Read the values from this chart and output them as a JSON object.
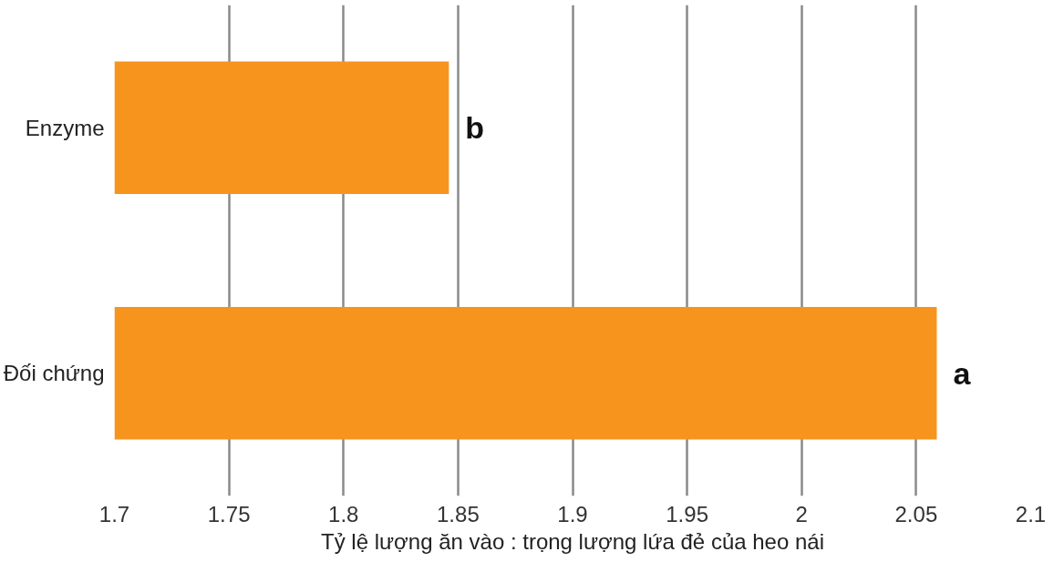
{
  "chart_data": {
    "type": "bar",
    "orientation": "horizontal",
    "xlabel": "Tỷ lệ lượng ăn vào : trọng lượng lứa đẻ của heo nái",
    "categories": [
      "Enzyme",
      "Đối chứng"
    ],
    "values": [
      1.846,
      2.059
    ],
    "color": "#f7941d",
    "xlim": [
      1.7,
      2.1
    ],
    "xticks": [
      1.7,
      1.75,
      1.8,
      1.85,
      1.9,
      1.95,
      2,
      2.05,
      2.1
    ],
    "grid": "x",
    "annotations": [
      {
        "text": "b",
        "x": 1.846,
        "y": "Enzyme"
      },
      {
        "text": "a",
        "x": 2.059,
        "y": "Đối chứng"
      }
    ]
  }
}
